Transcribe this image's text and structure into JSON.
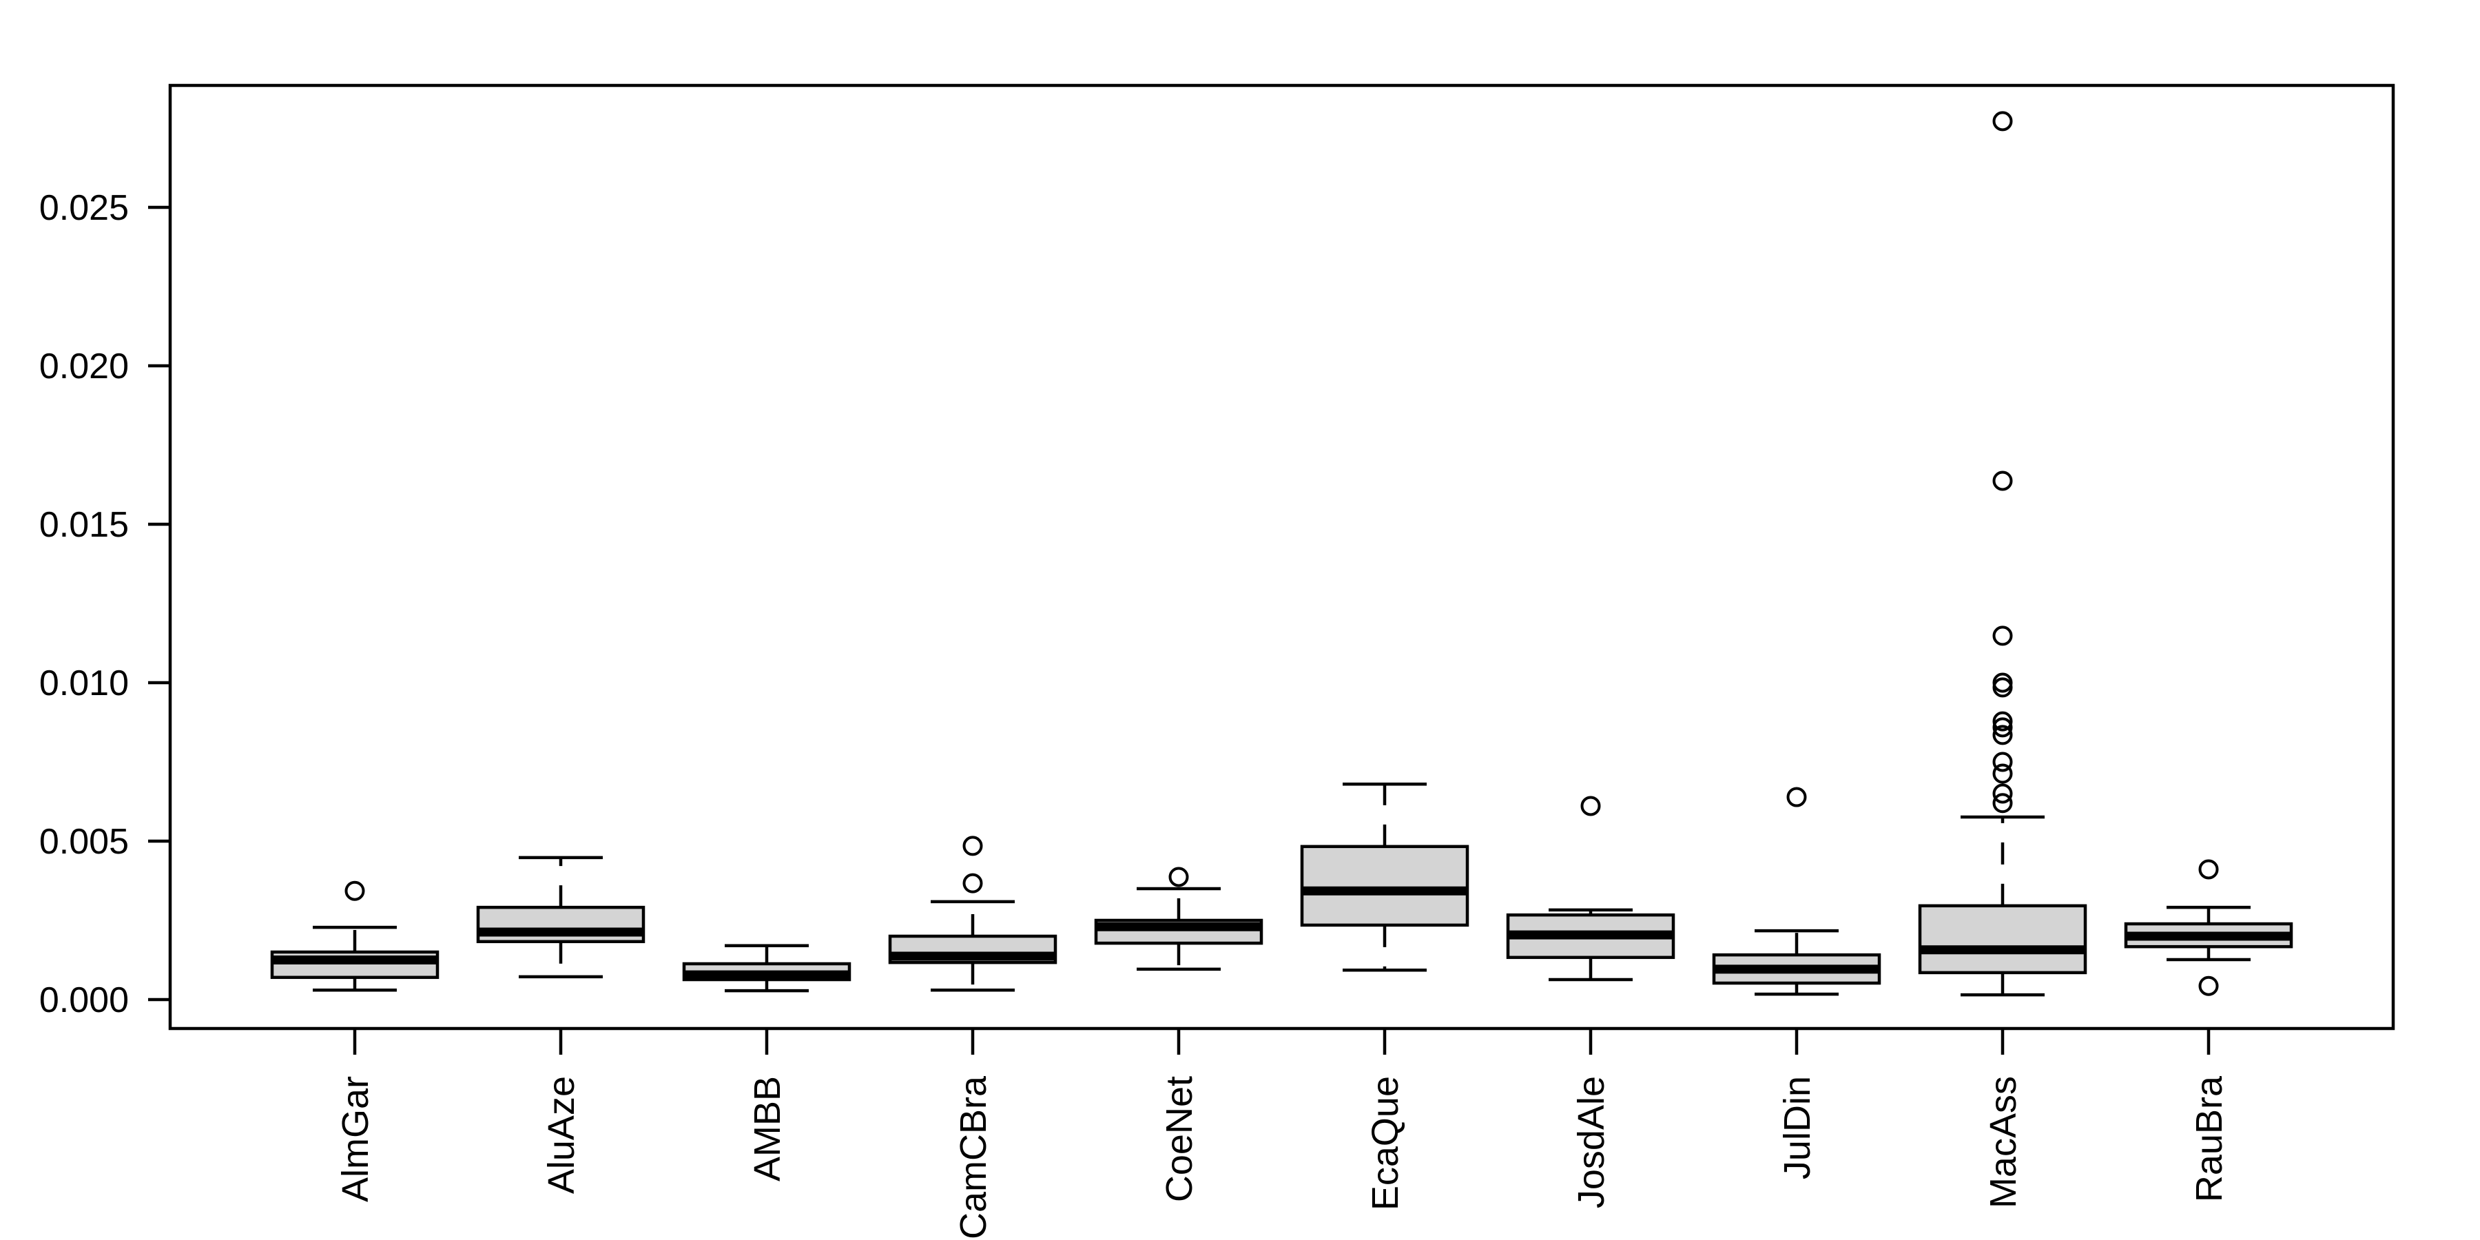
{
  "chart_data": {
    "type": "boxplot",
    "title": "",
    "xlabel": "",
    "ylabel": "",
    "grid": false,
    "legend": null,
    "background_color": "#ffffff",
    "box_fill_color": "#d4d4d4",
    "line_color": "#000000",
    "ylim": [
      -0.00091,
      0.02885
    ],
    "yticks": [
      0,
      0.005,
      0.01,
      0.015,
      0.02,
      0.025
    ],
    "ytick_labels": [
      "0.000",
      "0.005",
      "0.010",
      "0.015",
      "0.020",
      "0.025"
    ],
    "categories": [
      "AlmGar",
      "AluAze",
      "AMBB",
      "CamCBra",
      "CoeNet",
      "EcaQue",
      "JosdAle",
      "JulDin",
      "MacAss",
      "RauBra"
    ],
    "series": [
      {
        "name": "AlmGar",
        "whisker_low": 0.0003,
        "q1": 0.0007,
        "median": 0.00125,
        "q3": 0.0015,
        "whisker_high": 0.00228,
        "outliers": [
          0.00343
        ]
      },
      {
        "name": "AluAze",
        "whisker_low": 0.00072,
        "q1": 0.00183,
        "median": 0.00213,
        "q3": 0.00291,
        "whisker_high": 0.00448,
        "outliers": []
      },
      {
        "name": "AMBB",
        "whisker_low": 0.00028,
        "q1": 0.00063,
        "median": 0.00078,
        "q3": 0.00113,
        "whisker_high": 0.0017,
        "outliers": []
      },
      {
        "name": "CamCBra",
        "whisker_low": 0.0003,
        "q1": 0.00117,
        "median": 0.00137,
        "q3": 0.002,
        "whisker_high": 0.00309,
        "outliers": [
          0.00367,
          0.00485
        ]
      },
      {
        "name": "CoeNet",
        "whisker_low": 0.00096,
        "q1": 0.00178,
        "median": 0.0023,
        "q3": 0.0025,
        "whisker_high": 0.0035,
        "outliers": [
          0.00387
        ]
      },
      {
        "name": "EcaQue",
        "whisker_low": 0.00093,
        "q1": 0.00235,
        "median": 0.00343,
        "q3": 0.00483,
        "whisker_high": 0.0068,
        "outliers": []
      },
      {
        "name": "JosdAle",
        "whisker_low": 0.00063,
        "q1": 0.00133,
        "median": 0.00204,
        "q3": 0.00267,
        "whisker_high": 0.00283,
        "outliers": [
          0.00611
        ]
      },
      {
        "name": "JulDin",
        "whisker_low": 0.00017,
        "q1": 0.00052,
        "median": 0.00096,
        "q3": 0.00141,
        "whisker_high": 0.00217,
        "outliers": [
          0.00639
        ]
      },
      {
        "name": "MacAss",
        "whisker_low": 0.00015,
        "q1": 0.00085,
        "median": 0.00157,
        "q3": 0.00296,
        "whisker_high": 0.00576,
        "outliers": [
          0.0062,
          0.0065,
          0.00713,
          0.0075,
          0.00835,
          0.00859,
          0.00878,
          0.00985,
          0.01,
          0.01148,
          0.01637,
          0.02772
        ]
      },
      {
        "name": "RauBra",
        "whisker_low": 0.00126,
        "q1": 0.00167,
        "median": 0.002,
        "q3": 0.00239,
        "whisker_high": 0.00291,
        "outliers": [
          0.00043,
          0.00411
        ]
      }
    ]
  }
}
